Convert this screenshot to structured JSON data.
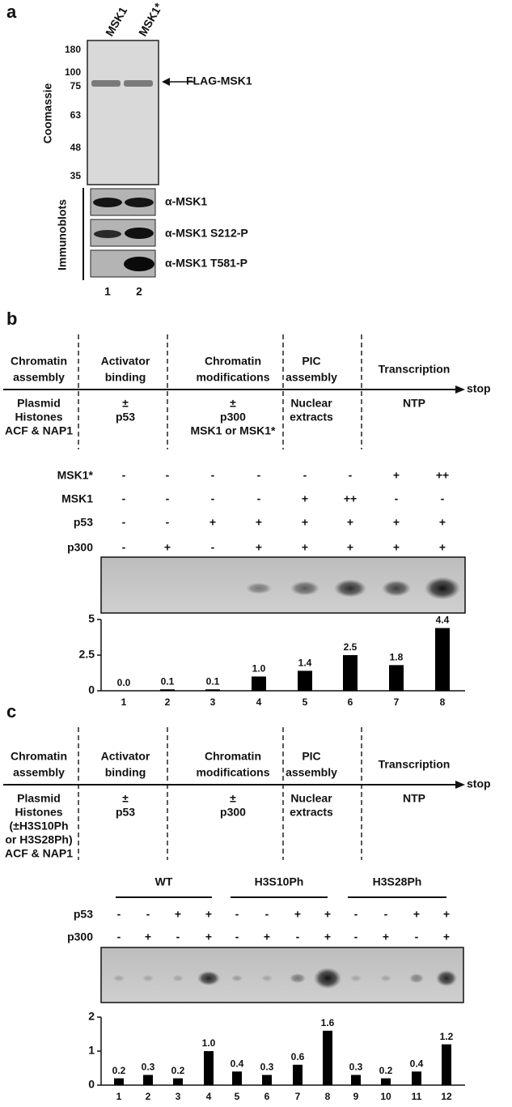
{
  "panel_a": {
    "label": "a",
    "lanes_header": [
      "MSK1",
      "MSK1*"
    ],
    "markers": [
      "180",
      "100",
      "75",
      "63",
      "48",
      "35"
    ],
    "stain": "Coomassie",
    "band_label": "FLAG-MSK1",
    "blot_group": "Immunoblots",
    "blots": [
      "α-MSK1",
      "α-MSK1 S212-P",
      "α-MSK1 T581-P"
    ],
    "lane_numbers": [
      "1",
      "2"
    ]
  },
  "panel_b": {
    "label": "b",
    "steps": [
      {
        "title": [
          "Chromatin",
          "assembly"
        ],
        "contents": [
          "Plasmid",
          "Histones",
          "ACF & NAP1"
        ]
      },
      {
        "title": [
          "Activator",
          "binding"
        ],
        "contents": [
          "±",
          "p53"
        ]
      },
      {
        "title": [
          "Chromatin",
          "modifications"
        ],
        "contents": [
          "±",
          "p300",
          "MSK1 or MSK1*"
        ]
      },
      {
        "title": [
          "PIC",
          "assembly"
        ],
        "contents": [
          "Nuclear",
          "extracts"
        ]
      },
      {
        "title": [
          "Transcription"
        ],
        "contents": [
          "NTP"
        ]
      }
    ],
    "end": "stop",
    "conditions": [
      {
        "name": "MSK1*",
        "signs": [
          "-",
          "-",
          "-",
          "-",
          "-",
          "-",
          "+",
          "++"
        ]
      },
      {
        "name": "MSK1",
        "signs": [
          "-",
          "-",
          "-",
          "-",
          "+",
          "++",
          "-",
          "-"
        ]
      },
      {
        "name": "p53",
        "signs": [
          "-",
          "-",
          "+",
          "+",
          "+",
          "+",
          "+",
          "+"
        ]
      },
      {
        "name": "p300",
        "signs": [
          "-",
          "+",
          "-",
          "+",
          "+",
          "+",
          "+",
          "+"
        ]
      }
    ]
  },
  "panel_c": {
    "label": "c",
    "steps": [
      {
        "title": [
          "Chromatin",
          "assembly"
        ],
        "contents": [
          "Plasmid",
          "Histones",
          "(±H3S10Ph",
          "or H3S28Ph)",
          "ACF & NAP1"
        ]
      },
      {
        "title": [
          "Activator",
          "binding"
        ],
        "contents": [
          "±",
          "p53"
        ]
      },
      {
        "title": [
          "Chromatin",
          "modifications"
        ],
        "contents": [
          "±",
          "p300"
        ]
      },
      {
        "title": [
          "PIC",
          "assembly"
        ],
        "contents": [
          "Nuclear",
          "extracts"
        ]
      },
      {
        "title": [
          "Transcription"
        ],
        "contents": [
          "NTP"
        ]
      }
    ],
    "end": "stop",
    "groups": [
      "WT",
      "H3S10Ph",
      "H3S28Ph"
    ],
    "conditions": [
      {
        "name": "p53",
        "signs": [
          "-",
          "-",
          "+",
          "+",
          "-",
          "-",
          "+",
          "+",
          "-",
          "-",
          "+",
          "+"
        ]
      },
      {
        "name": "p300",
        "signs": [
          "-",
          "+",
          "-",
          "+",
          "-",
          "+",
          "-",
          "+",
          "-",
          "+",
          "-",
          "+"
        ]
      }
    ]
  },
  "chart_data": [
    {
      "type": "bar",
      "categories": [
        "1",
        "2",
        "3",
        "4",
        "5",
        "6",
        "7",
        "8"
      ],
      "values": [
        0.0,
        0.1,
        0.1,
        1.0,
        1.4,
        2.5,
        1.8,
        4.4
      ],
      "value_labels": [
        "0.0",
        "0.1",
        "0.1",
        "1.0",
        "1.4",
        "2.5",
        "1.8",
        "4.4"
      ],
      "color": "#000000",
      "ylim": [
        0,
        5
      ],
      "yticks": [
        0,
        2.5,
        5
      ]
    },
    {
      "type": "bar",
      "categories": [
        "1",
        "2",
        "3",
        "4",
        "5",
        "6",
        "7",
        "8",
        "9",
        "10",
        "11",
        "12"
      ],
      "values": [
        0.2,
        0.3,
        0.2,
        1.0,
        0.4,
        0.3,
        0.6,
        1.6,
        0.3,
        0.2,
        0.4,
        1.2
      ],
      "value_labels": [
        "0.2",
        "0.3",
        "0.2",
        "1.0",
        "0.4",
        "0.3",
        "0.6",
        "1.6",
        "0.3",
        "0.2",
        "0.4",
        "1.2"
      ],
      "color": "#000000",
      "ylim": [
        0,
        2
      ],
      "yticks": [
        0,
        1,
        2
      ]
    }
  ]
}
